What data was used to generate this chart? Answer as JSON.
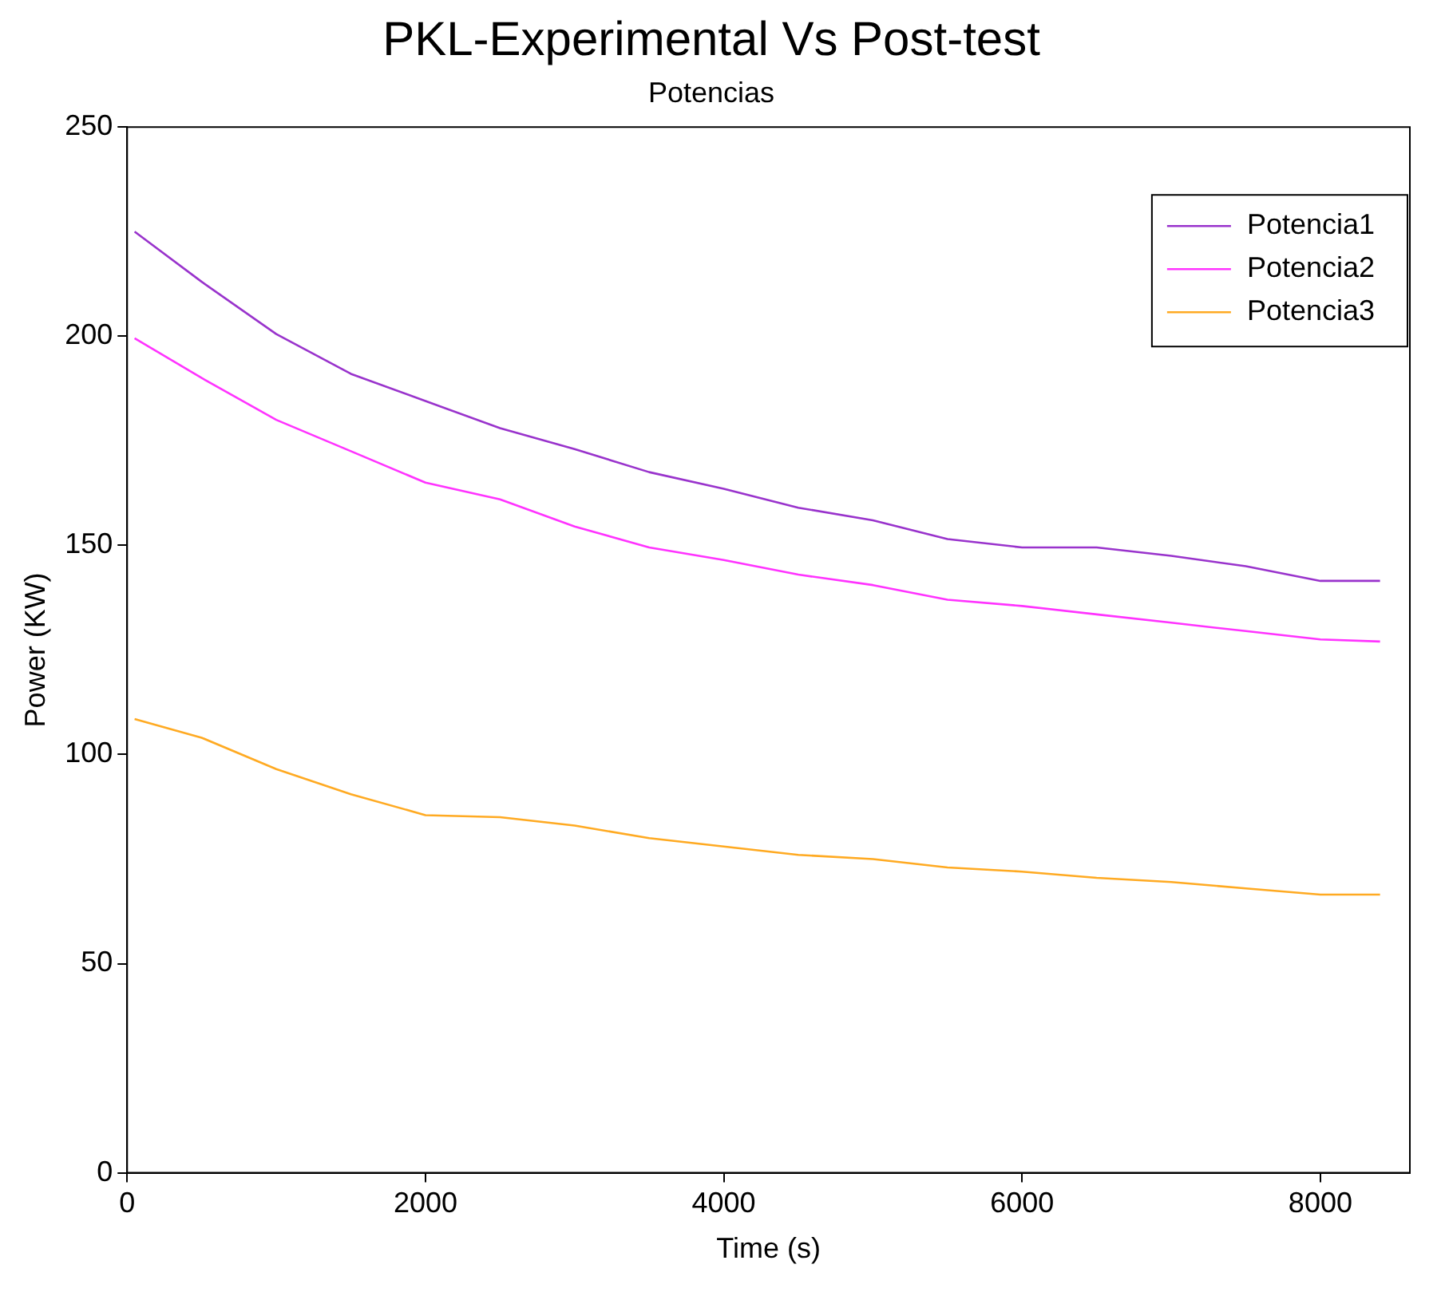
{
  "chart_data": {
    "type": "line",
    "title": "PKL-Experimental Vs Post-test",
    "subtitle": "Potencias",
    "xlabel": "Time (s)",
    "ylabel": "Power (KW)",
    "x": [
      50,
      500,
      1000,
      1500,
      2000,
      2500,
      3000,
      3500,
      4000,
      4500,
      5000,
      5500,
      6000,
      6500,
      7000,
      7500,
      8000,
      8400
    ],
    "series": [
      {
        "name": "Potencia1",
        "color": "#9933cc",
        "values": [
          225,
          213,
          200.5,
          191,
          184.5,
          178,
          173,
          167.5,
          163.5,
          159,
          156,
          151.5,
          149.5,
          149.5,
          147.5,
          145,
          141.5,
          141.5
        ]
      },
      {
        "name": "Potencia2",
        "color": "#ff33ff",
        "values": [
          199.5,
          190,
          180,
          172.5,
          165,
          161,
          154.5,
          149.5,
          146.5,
          143,
          140.5,
          137,
          135.5,
          133.5,
          131.5,
          129.5,
          127.5,
          127
        ]
      },
      {
        "name": "Potencia3",
        "color": "#ffaa22",
        "values": [
          108.5,
          104,
          96.5,
          90.5,
          85.5,
          85,
          83,
          80,
          78,
          76,
          75,
          73,
          72,
          70.5,
          69.5,
          68,
          66.5,
          66.5
        ]
      }
    ],
    "xlim": [
      0,
      8600
    ],
    "xticks": [
      0,
      2000,
      4000,
      6000,
      8000
    ],
    "ylim": [
      0,
      250
    ],
    "yticks": [
      0,
      50,
      100,
      150,
      200,
      250
    ],
    "grid": false,
    "legend": "top right",
    "marker": "none",
    "line_style": "solid"
  }
}
